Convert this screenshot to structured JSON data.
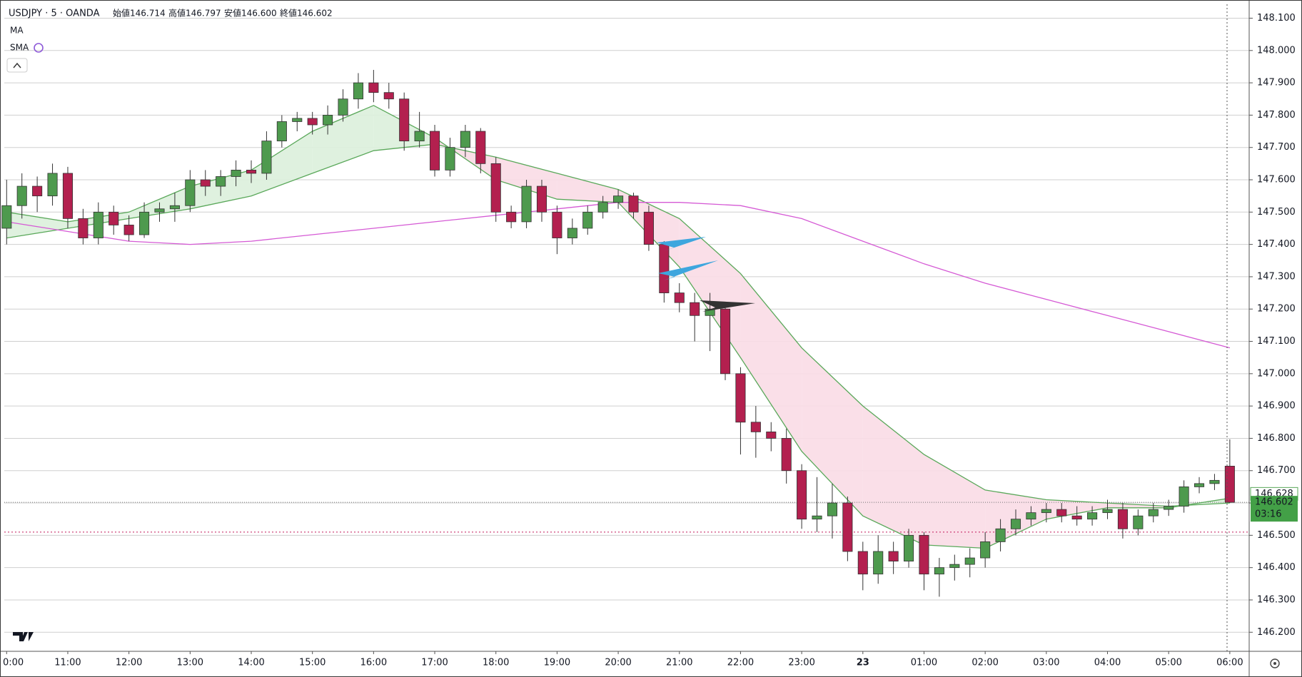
{
  "chart_data": {
    "type": "candlestick",
    "header": {
      "symbol": "USDJPY · 5 · OANDA",
      "open": "始値146.714",
      "high": "高値146.797",
      "low": "安値146.600",
      "close": "終値146.602"
    },
    "indicators": [
      "MA",
      "SMA"
    ],
    "up_color": "#4e9a4e",
    "down_color": "#b3204f",
    "xlim": [
      -0.46,
      243.8
    ],
    "ylim": [
      146.141,
      148.143
    ],
    "grid": true,
    "xticks": [
      {
        "value": 0,
        "label": "0:00"
      },
      {
        "value": 12,
        "label": "11:00"
      },
      {
        "value": 24,
        "label": "12:00"
      },
      {
        "value": 36,
        "label": "13:00"
      },
      {
        "value": 48,
        "label": "14:00"
      },
      {
        "value": 60,
        "label": "15:00"
      },
      {
        "value": 72,
        "label": "16:00"
      },
      {
        "value": 84,
        "label": "17:00"
      },
      {
        "value": 96,
        "label": "18:00"
      },
      {
        "value": 108,
        "label": "19:00"
      },
      {
        "value": 120,
        "label": "20:00"
      },
      {
        "value": 132,
        "label": "21:00"
      },
      {
        "value": 144,
        "label": "22:00"
      },
      {
        "value": 156,
        "label": "23:00"
      },
      {
        "value": 168,
        "label": "23"
      },
      {
        "value": 180,
        "label": "01:00"
      },
      {
        "value": 192,
        "label": "02:00"
      },
      {
        "value": 204,
        "label": "03:00"
      },
      {
        "value": 216,
        "label": "04:00"
      },
      {
        "value": 228,
        "label": "05:00"
      },
      {
        "value": 240,
        "label": "06:00"
      }
    ],
    "yticks": [
      {
        "value": 146.2,
        "label": "146.200"
      },
      {
        "value": 146.3,
        "label": "146.300"
      },
      {
        "value": 146.4,
        "label": "146.400"
      },
      {
        "value": 146.5,
        "label": "146.500"
      },
      {
        "value": 146.6,
        "label": "146.600"
      },
      {
        "value": 146.7,
        "label": "146.700"
      },
      {
        "value": 146.8,
        "label": "146.800"
      },
      {
        "value": 146.9,
        "label": "146.900"
      },
      {
        "value": 147.0,
        "label": "147.000"
      },
      {
        "value": 147.1,
        "label": "147.100"
      },
      {
        "value": 147.2,
        "label": "147.200"
      },
      {
        "value": 147.3,
        "label": "147.300"
      },
      {
        "value": 147.4,
        "label": "147.400"
      },
      {
        "value": 147.5,
        "label": "147.500"
      },
      {
        "value": 147.6,
        "label": "147.600"
      },
      {
        "value": 147.7,
        "label": "147.700"
      },
      {
        "value": 147.8,
        "label": "147.800"
      },
      {
        "value": 147.9,
        "label": "147.900"
      },
      {
        "value": 148.0,
        "label": "148.000"
      },
      {
        "value": 148.1,
        "label": "148.100"
      }
    ],
    "x": [
      0,
      3,
      6,
      9,
      12,
      15,
      18,
      21,
      24,
      27,
      30,
      33,
      36,
      39,
      42,
      45,
      48,
      51,
      54,
      57,
      60,
      63,
      66,
      69,
      72,
      75,
      78,
      81,
      84,
      87,
      90,
      93,
      96,
      99,
      102,
      105,
      108,
      111,
      114,
      117,
      120,
      123,
      126,
      129,
      132,
      135,
      138,
      141,
      144,
      147,
      150,
      153,
      156,
      159,
      162,
      165,
      168,
      171,
      174,
      177,
      180,
      183,
      186,
      189,
      192,
      195,
      198,
      201,
      204,
      207,
      210,
      213,
      216,
      219,
      222,
      225,
      228,
      231,
      234,
      237,
      240
    ],
    "ohlc": [
      [
        147.45,
        147.6,
        147.4,
        147.52
      ],
      [
        147.52,
        147.62,
        147.48,
        147.58
      ],
      [
        147.58,
        147.61,
        147.5,
        147.55
      ],
      [
        147.55,
        147.65,
        147.52,
        147.62
      ],
      [
        147.62,
        147.64,
        147.45,
        147.48
      ],
      [
        147.48,
        147.51,
        147.4,
        147.42
      ],
      [
        147.42,
        147.53,
        147.4,
        147.5
      ],
      [
        147.5,
        147.52,
        147.43,
        147.46
      ],
      [
        147.46,
        147.49,
        147.41,
        147.43
      ],
      [
        147.43,
        147.53,
        147.42,
        147.5
      ],
      [
        147.5,
        147.53,
        147.47,
        147.51
      ],
      [
        147.51,
        147.56,
        147.47,
        147.52
      ],
      [
        147.52,
        147.63,
        147.5,
        147.6
      ],
      [
        147.6,
        147.63,
        147.55,
        147.58
      ],
      [
        147.58,
        147.63,
        147.55,
        147.61
      ],
      [
        147.61,
        147.66,
        147.58,
        147.63
      ],
      [
        147.63,
        147.66,
        147.59,
        147.62
      ],
      [
        147.62,
        147.75,
        147.6,
        147.72
      ],
      [
        147.72,
        147.8,
        147.7,
        147.78
      ],
      [
        147.78,
        147.81,
        147.75,
        147.79
      ],
      [
        147.79,
        147.81,
        147.74,
        147.77
      ],
      [
        147.77,
        147.83,
        147.74,
        147.8
      ],
      [
        147.8,
        147.88,
        147.78,
        147.85
      ],
      [
        147.85,
        147.93,
        147.82,
        147.9
      ],
      [
        147.9,
        147.94,
        147.84,
        147.87
      ],
      [
        147.87,
        147.9,
        147.82,
        147.85
      ],
      [
        147.85,
        147.87,
        147.69,
        147.72
      ],
      [
        147.72,
        147.81,
        147.7,
        147.75
      ],
      [
        147.75,
        147.77,
        147.61,
        147.63
      ],
      [
        147.63,
        147.73,
        147.61,
        147.7
      ],
      [
        147.7,
        147.77,
        147.67,
        147.75
      ],
      [
        147.75,
        147.76,
        147.62,
        147.65
      ],
      [
        147.65,
        147.67,
        147.47,
        147.5
      ],
      [
        147.5,
        147.52,
        147.45,
        147.47
      ],
      [
        147.47,
        147.6,
        147.45,
        147.58
      ],
      [
        147.58,
        147.6,
        147.47,
        147.5
      ],
      [
        147.5,
        147.52,
        147.37,
        147.42
      ],
      [
        147.42,
        147.48,
        147.4,
        147.45
      ],
      [
        147.45,
        147.52,
        147.43,
        147.5
      ],
      [
        147.5,
        147.55,
        147.48,
        147.53
      ],
      [
        147.53,
        147.57,
        147.51,
        147.55
      ],
      [
        147.55,
        147.56,
        147.48,
        147.5
      ],
      [
        147.5,
        147.52,
        147.38,
        147.4
      ],
      [
        147.4,
        147.41,
        147.22,
        147.25
      ],
      [
        147.25,
        147.28,
        147.19,
        147.22
      ],
      [
        147.22,
        147.25,
        147.1,
        147.18
      ],
      [
        147.18,
        147.25,
        147.07,
        147.2
      ],
      [
        147.2,
        147.22,
        146.98,
        147.0
      ],
      [
        147.0,
        147.02,
        146.75,
        146.85
      ],
      [
        146.85,
        146.9,
        146.74,
        146.82
      ],
      [
        146.82,
        146.85,
        146.76,
        146.8
      ],
      [
        146.8,
        146.83,
        146.66,
        146.7
      ],
      [
        146.7,
        146.72,
        146.52,
        146.55
      ],
      [
        146.55,
        146.68,
        146.51,
        146.56
      ],
      [
        146.56,
        146.66,
        146.49,
        146.6
      ],
      [
        146.6,
        146.62,
        146.42,
        146.45
      ],
      [
        146.45,
        146.48,
        146.33,
        146.38
      ],
      [
        146.38,
        146.5,
        146.35,
        146.45
      ],
      [
        146.45,
        146.48,
        146.38,
        146.42
      ],
      [
        146.42,
        146.52,
        146.4,
        146.5
      ],
      [
        146.5,
        146.51,
        146.33,
        146.38
      ],
      [
        146.38,
        146.43,
        146.31,
        146.4
      ],
      [
        146.4,
        146.44,
        146.36,
        146.41
      ],
      [
        146.41,
        146.46,
        146.37,
        146.43
      ],
      [
        146.43,
        146.51,
        146.4,
        146.48
      ],
      [
        146.48,
        146.55,
        146.45,
        146.52
      ],
      [
        146.52,
        146.58,
        146.5,
        146.55
      ],
      [
        146.55,
        146.59,
        146.53,
        146.57
      ],
      [
        146.57,
        146.6,
        146.54,
        146.58
      ],
      [
        146.58,
        146.6,
        146.54,
        146.56
      ],
      [
        146.56,
        146.59,
        146.53,
        146.55
      ],
      [
        146.55,
        146.59,
        146.53,
        146.57
      ],
      [
        146.57,
        146.61,
        146.55,
        146.58
      ],
      [
        146.58,
        146.6,
        146.49,
        146.52
      ],
      [
        146.52,
        146.58,
        146.5,
        146.56
      ],
      [
        146.56,
        146.6,
        146.54,
        146.58
      ],
      [
        146.58,
        146.61,
        146.56,
        146.59
      ],
      [
        146.59,
        146.67,
        146.57,
        146.65
      ],
      [
        146.65,
        146.68,
        146.63,
        146.66
      ],
      [
        146.66,
        146.69,
        146.64,
        146.67
      ],
      [
        146.714,
        146.797,
        146.6,
        146.602
      ]
    ],
    "line_x": [
      0,
      12,
      24,
      36,
      48,
      60,
      72,
      84,
      96,
      108,
      120,
      132,
      144,
      156,
      168,
      180,
      192,
      204,
      216,
      228,
      240
    ],
    "lines": [
      {
        "color": "#5aa85a",
        "values": [
          147.5,
          147.47,
          147.5,
          147.58,
          147.63,
          147.75,
          147.83,
          147.73,
          147.6,
          147.54,
          147.53,
          147.33,
          147.05,
          146.76,
          146.56,
          146.47,
          146.46,
          146.55,
          146.585,
          146.585,
          146.615
        ]
      },
      {
        "color": "#5aa85a",
        "values": [
          147.42,
          147.45,
          147.48,
          147.51,
          147.55,
          147.62,
          147.69,
          147.71,
          147.67,
          147.62,
          147.57,
          147.48,
          147.31,
          147.08,
          146.9,
          146.75,
          146.64,
          146.61,
          146.6,
          146.59,
          146.6
        ]
      },
      {
        "color": "#d55ad5",
        "values": [
          147.47,
          147.44,
          147.41,
          147.4,
          147.41,
          147.43,
          147.45,
          147.47,
          147.49,
          147.51,
          147.53,
          147.53,
          147.52,
          147.48,
          147.41,
          147.34,
          147.28,
          147.23,
          147.18,
          147.13,
          147.08
        ]
      }
    ],
    "band_up_color": "#dcf0dc",
    "band_down_color": "#fadbe6",
    "reference_line": 146.51,
    "ma_price": 146.628,
    "last_price": 146.602,
    "countdown": "03:16"
  }
}
